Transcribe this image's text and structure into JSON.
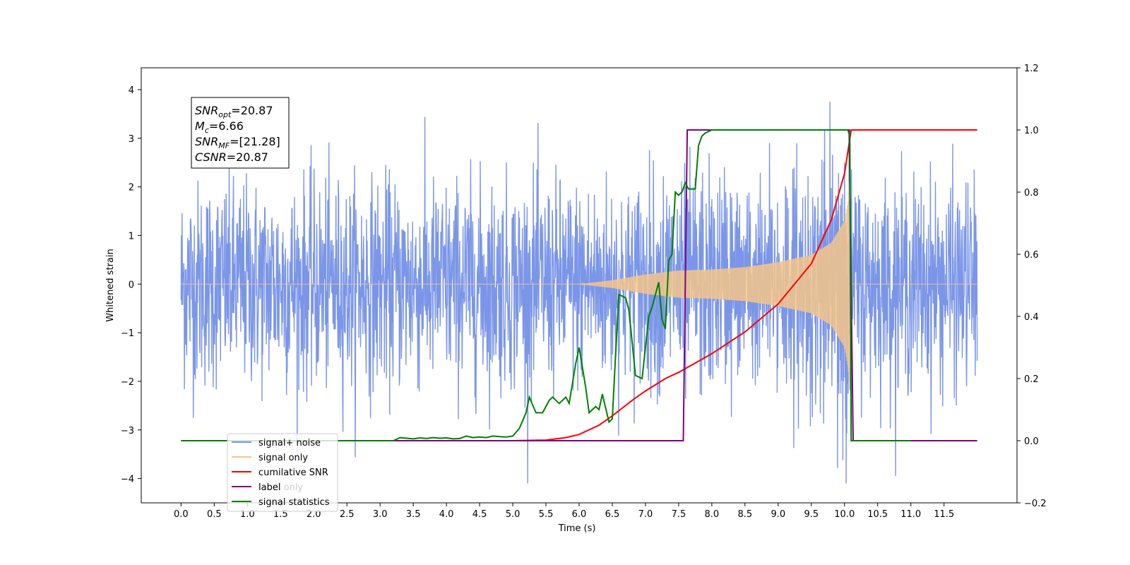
{
  "chart_data": {
    "type": "line",
    "xlabel": "Time (s)",
    "ylabel": "Whitened strain",
    "xlim": [
      -0.6,
      12.6
    ],
    "ylim": [
      -4.5,
      4.45
    ],
    "y2lim": [
      -0.2,
      1.2
    ],
    "x_ticks": [
      0.0,
      0.5,
      1.0,
      1.5,
      2.0,
      2.5,
      3.0,
      3.5,
      4.0,
      4.5,
      5.0,
      5.5,
      6.0,
      6.5,
      7.0,
      7.5,
      8.0,
      8.5,
      9.0,
      9.5,
      10.0,
      10.5,
      11.0,
      11.5
    ],
    "x_tick_labels": [
      "0.0",
      "0.5",
      "1.0",
      "1.5",
      "2.0",
      "2.5",
      "3.0",
      "3.5",
      "4.0",
      "4.5",
      "5.0",
      "5.5",
      "6.0",
      "6.5",
      "7.0",
      "7.5",
      "8.0",
      "8.5",
      "9.0",
      "9.5",
      "10.0",
      "10.5",
      "11.0",
      "11.5"
    ],
    "y_ticks": [
      -4,
      -3,
      -2,
      -1,
      0,
      1,
      2,
      3,
      4
    ],
    "y_tick_labels": [
      "−4",
      "−3",
      "−2",
      "−1",
      "0",
      "1",
      "2",
      "3",
      "4"
    ],
    "y2_ticks": [
      -0.2,
      0.0,
      0.2,
      0.4,
      0.6,
      0.8,
      1.0,
      1.2
    ],
    "y2_tick_labels": [
      "−0.2",
      "0.0",
      "0.2",
      "0.4",
      "0.6",
      "0.8",
      "1.0",
      "1.2"
    ],
    "annotation_lines": [
      {
        "sym": "SNR",
        "sub": "opt",
        "val": "=20.87"
      },
      {
        "sym": "M",
        "sub": "c",
        "val": "=6.66"
      },
      {
        "sym": "SNR",
        "sub": "MF",
        "val": "=[21.28]"
      },
      {
        "sym": "CSNR",
        "sub": "",
        "val": "=20.87"
      }
    ],
    "legend_location": "lower-left",
    "legend": [
      {
        "label": "signal+ noise",
        "color": "#7b96e8"
      },
      {
        "label": "signal only",
        "color": "#f5c58a"
      },
      {
        "label": "cumilative SNR",
        "color": "#ff0000"
      },
      {
        "label": "label",
        "color": "#800080"
      },
      {
        "label": "signal statistics",
        "color": "#008000"
      }
    ],
    "hidden_text_behind_legend": "label only",
    "series": [
      {
        "name": "signal+ noise",
        "axis": "left",
        "color": "#7b96e8",
        "x_range": [
          0.0,
          12.0
        ],
        "noise_std": 1.05,
        "burst_end": 10.1
      },
      {
        "name": "signal only",
        "axis": "left",
        "color": "#f5c58a",
        "envelope": {
          "x": [
            0.0,
            6.0,
            6.5,
            7.0,
            7.5,
            8.0,
            8.5,
            9.0,
            9.5,
            9.8,
            10.0,
            10.05,
            10.08,
            10.1,
            12.0
          ],
          "amp": [
            0.0,
            0.0,
            0.08,
            0.2,
            0.28,
            0.3,
            0.35,
            0.45,
            0.6,
            0.85,
            1.3,
            1.7,
            2.3,
            0.0,
            0.0
          ]
        }
      },
      {
        "name": "cumilative SNR",
        "axis": "right",
        "color": "#ff0000",
        "x": [
          0.0,
          5.0,
          5.5,
          5.8,
          6.0,
          6.3,
          6.5,
          6.8,
          7.0,
          7.3,
          7.5,
          8.0,
          8.5,
          9.0,
          9.5,
          9.8,
          10.0,
          10.1,
          12.0
        ],
        "y": [
          0.0,
          0.0,
          0.002,
          0.01,
          0.02,
          0.05,
          0.08,
          0.13,
          0.16,
          0.2,
          0.22,
          0.28,
          0.35,
          0.44,
          0.57,
          0.71,
          0.86,
          1.0,
          1.0
        ]
      },
      {
        "name": "label",
        "axis": "right",
        "color": "#800080",
        "x": [
          0.0,
          7.57,
          7.63,
          10.07,
          10.13,
          12.0
        ],
        "y": [
          0.0,
          0.0,
          1.0,
          1.0,
          0.0,
          0.0
        ]
      },
      {
        "name": "signal statistics",
        "axis": "right",
        "color": "#008000",
        "x": [
          0.0,
          3.2,
          3.3,
          3.4,
          3.5,
          3.6,
          3.7,
          3.8,
          3.9,
          4.0,
          4.1,
          4.2,
          4.3,
          4.4,
          4.5,
          4.6,
          4.7,
          4.8,
          4.9,
          5.0,
          5.1,
          5.2,
          5.25,
          5.35,
          5.45,
          5.55,
          5.6,
          5.7,
          5.8,
          5.85,
          5.95,
          6.0,
          6.1,
          6.15,
          6.2,
          6.25,
          6.3,
          6.35,
          6.45,
          6.5,
          6.55,
          6.6,
          6.7,
          6.75,
          6.85,
          6.95,
          7.05,
          7.1,
          7.2,
          7.25,
          7.3,
          7.35,
          7.4,
          7.45,
          7.5,
          7.55,
          7.6,
          7.65,
          7.7,
          7.75,
          7.8,
          7.85,
          7.9,
          8.0,
          8.1,
          8.5,
          10.0,
          10.05,
          10.08,
          10.1,
          10.13,
          10.2,
          11.0
        ],
        "y": [
          0.0,
          0.0,
          0.01,
          0.008,
          0.006,
          0.009,
          0.007,
          0.01,
          0.008,
          0.009,
          0.006,
          0.007,
          0.015,
          0.01,
          0.012,
          0.01,
          0.015,
          0.013,
          0.012,
          0.015,
          0.04,
          0.09,
          0.14,
          0.09,
          0.09,
          0.13,
          0.14,
          0.12,
          0.14,
          0.12,
          0.25,
          0.3,
          0.17,
          0.09,
          0.1,
          0.11,
          0.1,
          0.15,
          0.06,
          0.07,
          0.28,
          0.47,
          0.46,
          0.42,
          0.21,
          0.2,
          0.4,
          0.43,
          0.51,
          0.39,
          0.36,
          0.58,
          0.6,
          0.8,
          0.79,
          0.8,
          0.83,
          0.81,
          0.81,
          0.81,
          0.95,
          0.98,
          0.99,
          1.0,
          1.0,
          1.0,
          1.0,
          1.0,
          0.98,
          0.0,
          0.0,
          0.0,
          0.0
        ]
      }
    ]
  }
}
